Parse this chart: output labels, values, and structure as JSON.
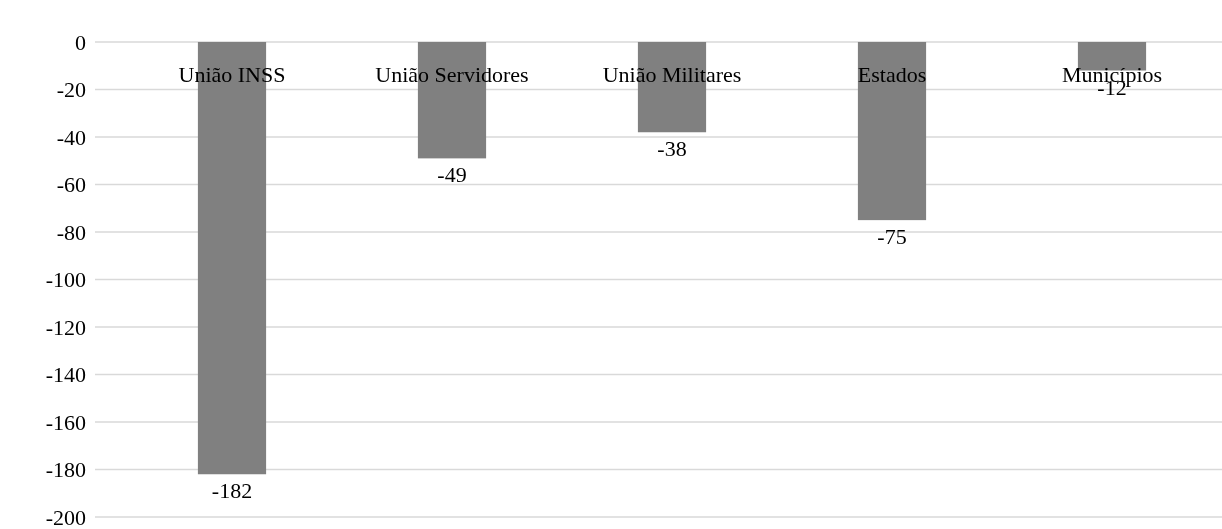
{
  "chart_data": {
    "type": "bar",
    "categories": [
      "União INSS",
      "União Servidores",
      "União Militares",
      "Estados",
      "Municípios"
    ],
    "values": [
      -182,
      -49,
      -38,
      -75,
      -12
    ],
    "color": "#808080",
    "ylim": [
      -200,
      0
    ],
    "yticks": [
      0,
      -20,
      -40,
      -60,
      -80,
      -100,
      -120,
      -140,
      -160,
      -180,
      -200
    ],
    "grid": "y",
    "data_labels": true
  }
}
